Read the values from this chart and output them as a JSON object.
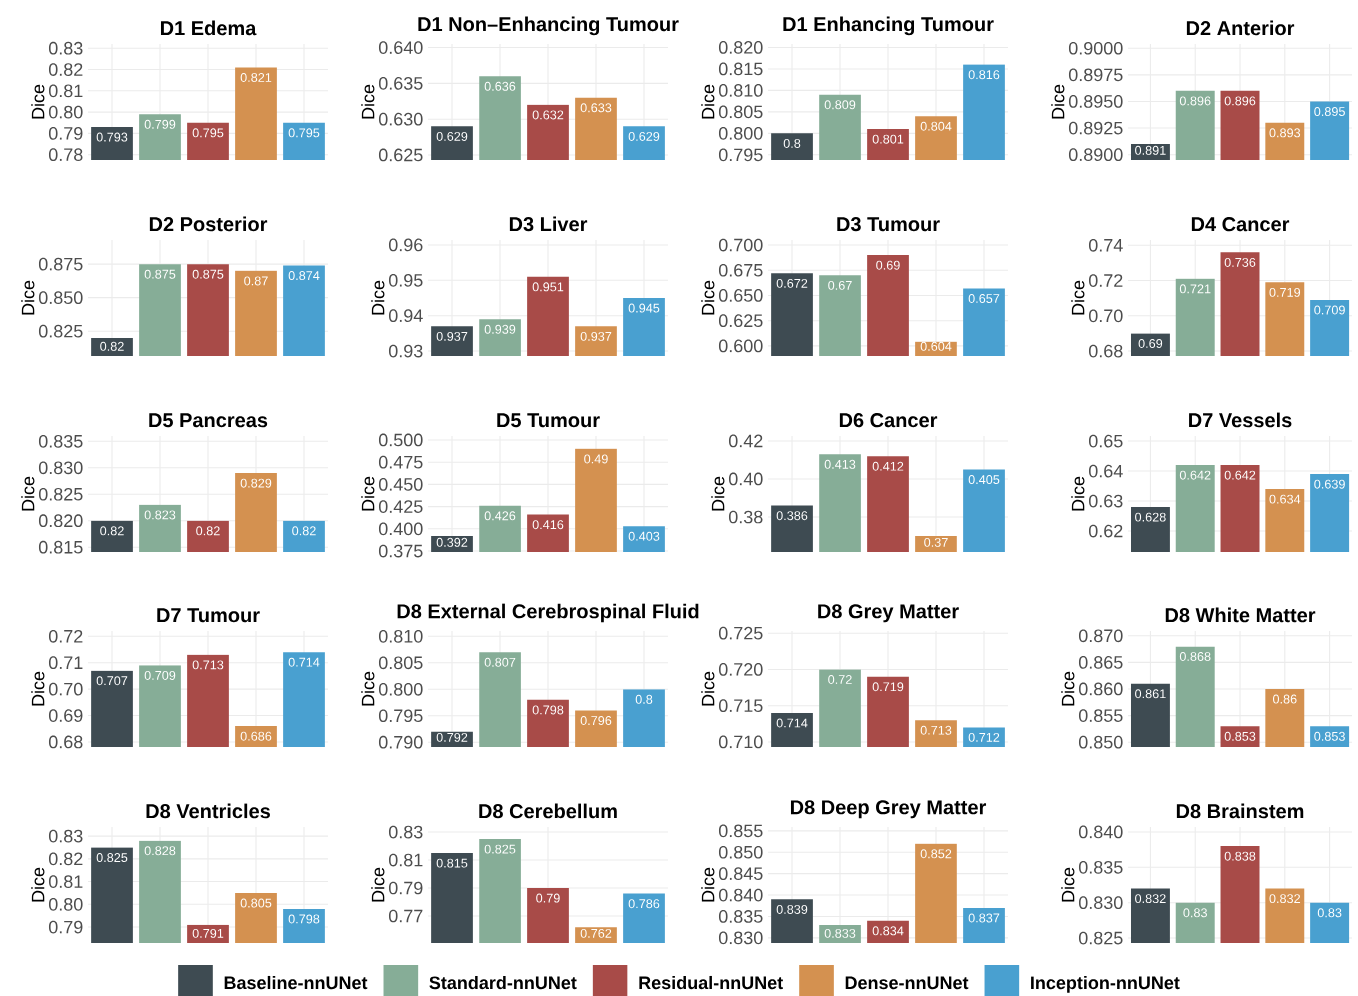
{
  "chart_data": [
    {
      "type": "bar",
      "title": "D1 Edema",
      "ylabel": "Dice",
      "categories": [
        null,
        null,
        null,
        null,
        null
      ],
      "values": [
        0.793,
        0.799,
        0.795,
        0.821,
        0.795
      ],
      "value_labels": [
        "0.793",
        "0.799",
        "0.795",
        "0.821",
        "0.795"
      ],
      "colors": [
        "#3e4b52",
        "#86ad97",
        "#a84b48",
        "#d49150",
        "#49a0d0"
      ],
      "ylim": [
        0.7775,
        0.832
      ],
      "yticks": [
        0.78,
        0.79,
        {
          "value": 0.8,
          "label": "0.80"
        },
        0.81,
        0.82,
        0.83
      ],
      "grid": true,
      "tick_labels": "y"
    },
    {
      "type": "bar",
      "title": "D1 Non–Enhancing Tumour",
      "ylabel": "Dice",
      "categories": [
        null,
        null,
        null,
        null,
        null
      ],
      "values": [
        0.629,
        0.636,
        0.632,
        0.633,
        0.629
      ],
      "value_labels": [
        "0.629",
        "0.636",
        "0.632",
        "0.633",
        "0.629"
      ],
      "colors": [
        "#3e4b52",
        "#86ad97",
        "#a84b48",
        "#d49150",
        "#49a0d0"
      ],
      "ylim": [
        0.6243,
        0.6405
      ],
      "yticks": [
        0.625,
        {
          "value": 0.63,
          "label": "0.630"
        },
        0.635,
        {
          "value": 0.64,
          "label": "0.640"
        }
      ],
      "grid": true,
      "tick_labels": "y"
    },
    {
      "type": "bar",
      "title": "D1 Enhancing Tumour",
      "ylabel": "Dice",
      "categories": [
        null,
        null,
        null,
        null,
        null
      ],
      "values": [
        0.8,
        0.809,
        0.801,
        0.804,
        0.816
      ],
      "value_labels": [
        "0.8",
        "0.809",
        "0.801",
        "0.804",
        "0.816"
      ],
      "colors": [
        "#3e4b52",
        "#86ad97",
        "#a84b48",
        "#d49150",
        "#49a0d0"
      ],
      "ylim": [
        0.7938,
        0.8208
      ],
      "yticks": [
        0.795,
        {
          "value": 0.8,
          "label": "0.800"
        },
        0.805,
        {
          "value": 0.81,
          "label": "0.810"
        },
        0.815,
        {
          "value": 0.82,
          "label": "0.820"
        }
      ],
      "grid": true,
      "tick_labels": "y"
    },
    {
      "type": "bar",
      "title": "D2 Anterior",
      "ylabel": "Dice",
      "categories": [
        null,
        null,
        null,
        null,
        null
      ],
      "values": [
        0.891,
        0.896,
        0.896,
        0.893,
        0.895
      ],
      "value_labels": [
        "0.891",
        "0.896",
        "0.896",
        "0.893",
        "0.895"
      ],
      "colors": [
        "#3e4b52",
        "#86ad97",
        "#a84b48",
        "#d49150",
        "#49a0d0"
      ],
      "ylim": [
        0.8895,
        0.9004
      ],
      "yticks": [
        {
          "value": 0.89,
          "label": "0.8900"
        },
        0.8925,
        {
          "value": 0.895,
          "label": "0.8950"
        },
        0.8975,
        {
          "value": 0.9,
          "label": "0.9000"
        }
      ],
      "grid": true,
      "tick_labels": "y"
    },
    {
      "type": "bar",
      "title": "D2 Posterior",
      "ylabel": "Dice",
      "categories": [
        null,
        null,
        null,
        null,
        null
      ],
      "values": [
        0.82,
        0.875,
        0.875,
        0.87,
        0.874
      ],
      "value_labels": [
        "0.82",
        "0.875",
        "0.875",
        "0.87",
        "0.874"
      ],
      "colors": [
        "#3e4b52",
        "#86ad97",
        "#a84b48",
        "#d49150",
        "#49a0d0"
      ],
      "ylim": [
        0.8065,
        0.893
      ],
      "yticks": [
        0.825,
        {
          "value": 0.85,
          "label": "0.850"
        },
        0.875
      ],
      "grid": true,
      "tick_labels": "y"
    },
    {
      "type": "bar",
      "title": "D3 Liver",
      "ylabel": "Dice",
      "categories": [
        null,
        null,
        null,
        null,
        null
      ],
      "values": [
        0.937,
        0.939,
        0.951,
        0.937,
        0.945
      ],
      "value_labels": [
        "0.937",
        "0.939",
        "0.951",
        "0.937",
        "0.945"
      ],
      "colors": [
        "#3e4b52",
        "#86ad97",
        "#a84b48",
        "#d49150",
        "#49a0d0"
      ],
      "ylim": [
        0.9286,
        0.9614
      ],
      "yticks": [
        0.93,
        0.94,
        0.95,
        0.96
      ],
      "grid": true,
      "tick_labels": "y"
    },
    {
      "type": "bar",
      "title": "D3 Tumour",
      "ylabel": "Dice",
      "categories": [
        null,
        null,
        null,
        null,
        null
      ],
      "values": [
        0.672,
        0.67,
        0.69,
        0.604,
        0.657
      ],
      "value_labels": [
        "0.672",
        "0.67",
        "0.69",
        "0.604",
        "0.657"
      ],
      "colors": [
        "#3e4b52",
        "#86ad97",
        "#a84b48",
        "#d49150",
        "#49a0d0"
      ],
      "ylim": [
        0.59,
        0.705
      ],
      "yticks": [
        {
          "value": 0.6,
          "label": "0.600"
        },
        0.625,
        {
          "value": 0.65,
          "label": "0.650"
        },
        0.675,
        {
          "value": 0.7,
          "label": "0.700"
        }
      ],
      "grid": true,
      "tick_labels": "y"
    },
    {
      "type": "bar",
      "title": "D4 Cancer",
      "ylabel": "Dice",
      "categories": [
        null,
        null,
        null,
        null,
        null
      ],
      "values": [
        0.69,
        0.721,
        0.736,
        0.719,
        0.709
      ],
      "value_labels": [
        "0.69",
        "0.721",
        "0.736",
        "0.719",
        "0.709"
      ],
      "colors": [
        "#3e4b52",
        "#86ad97",
        "#a84b48",
        "#d49150",
        "#49a0d0"
      ],
      "ylim": [
        0.6772,
        0.743
      ],
      "yticks": [
        0.68,
        {
          "value": 0.7,
          "label": "0.70"
        },
        0.72,
        0.74
      ],
      "grid": true,
      "tick_labels": "y"
    },
    {
      "type": "bar",
      "title": "D5 Pancreas",
      "ylabel": "Dice",
      "categories": [
        null,
        null,
        null,
        null,
        null
      ],
      "values": [
        0.82,
        0.823,
        0.82,
        0.829,
        0.82
      ],
      "value_labels": [
        "0.82",
        "0.823",
        "0.82",
        "0.829",
        "0.82"
      ],
      "colors": [
        "#3e4b52",
        "#86ad97",
        "#a84b48",
        "#d49150",
        "#49a0d0"
      ],
      "ylim": [
        0.8141,
        0.836
      ],
      "yticks": [
        0.815,
        {
          "value": 0.82,
          "label": "0.820"
        },
        0.825,
        {
          "value": 0.83,
          "label": "0.830"
        },
        0.835
      ],
      "grid": true,
      "tick_labels": "y"
    },
    {
      "type": "bar",
      "title": "D5 Tumour",
      "ylabel": "Dice",
      "categories": [
        null,
        null,
        null,
        null,
        null
      ],
      "values": [
        0.392,
        0.426,
        0.416,
        0.49,
        0.403
      ],
      "value_labels": [
        "0.392",
        "0.426",
        "0.416",
        "0.49",
        "0.403"
      ],
      "colors": [
        "#3e4b52",
        "#86ad97",
        "#a84b48",
        "#d49150",
        "#49a0d0"
      ],
      "ylim": [
        0.3739,
        0.5045
      ],
      "yticks": [
        0.375,
        {
          "value": 0.4,
          "label": "0.400"
        },
        0.425,
        {
          "value": 0.45,
          "label": "0.450"
        },
        0.475,
        {
          "value": 0.5,
          "label": "0.500"
        }
      ],
      "grid": true,
      "tick_labels": "y"
    },
    {
      "type": "bar",
      "title": "D6 Cancer",
      "ylabel": "Dice",
      "categories": [
        null,
        null,
        null,
        null,
        null
      ],
      "values": [
        0.386,
        0.413,
        0.412,
        0.37,
        0.405
      ],
      "value_labels": [
        "0.386",
        "0.413",
        "0.412",
        "0.37",
        "0.405"
      ],
      "colors": [
        "#3e4b52",
        "#86ad97",
        "#a84b48",
        "#d49150",
        "#49a0d0"
      ],
      "ylim": [
        0.3616,
        0.4226
      ],
      "yticks": [
        0.38,
        {
          "value": 0.4,
          "label": "0.40"
        },
        0.42
      ],
      "grid": true,
      "tick_labels": "y"
    },
    {
      "type": "bar",
      "title": "D7 Vessels",
      "ylabel": "Dice",
      "categories": [
        null,
        null,
        null,
        null,
        null
      ],
      "values": [
        0.628,
        0.642,
        0.642,
        0.634,
        0.639
      ],
      "value_labels": [
        "0.628",
        "0.642",
        "0.642",
        "0.634",
        "0.639"
      ],
      "colors": [
        "#3e4b52",
        "#86ad97",
        "#a84b48",
        "#d49150",
        "#49a0d0"
      ],
      "ylim": [
        0.613,
        0.6517
      ],
      "yticks": [
        0.62,
        0.63,
        0.64,
        0.65
      ],
      "grid": true,
      "tick_labels": "y"
    },
    {
      "type": "bar",
      "title": "D7 Tumour",
      "ylabel": "Dice",
      "categories": [
        null,
        null,
        null,
        null,
        null
      ],
      "values": [
        0.707,
        0.709,
        0.713,
        0.686,
        0.714
      ],
      "value_labels": [
        "0.707",
        "0.709",
        "0.713",
        "0.686",
        "0.714"
      ],
      "colors": [
        "#3e4b52",
        "#86ad97",
        "#a84b48",
        "#d49150",
        "#49a0d0"
      ],
      "ylim": [
        0.6781,
        0.722
      ],
      "yticks": [
        0.68,
        0.69,
        {
          "value": 0.7,
          "label": "0.70"
        },
        0.71,
        0.72
      ],
      "grid": true,
      "tick_labels": "y"
    },
    {
      "type": "bar",
      "title": "D8 External Cerebrospinal Fluid",
      "ylabel": "Dice",
      "categories": [
        null,
        null,
        null,
        null,
        null
      ],
      "values": [
        0.792,
        0.807,
        0.798,
        0.796,
        0.8
      ],
      "value_labels": [
        "0.792",
        "0.807",
        "0.798",
        "0.796",
        "0.8"
      ],
      "colors": [
        "#3e4b52",
        "#86ad97",
        "#a84b48",
        "#d49150",
        "#49a0d0"
      ],
      "ylim": [
        0.7891,
        0.811
      ],
      "yticks": [
        {
          "value": 0.79,
          "label": "0.790"
        },
        0.795,
        {
          "value": 0.8,
          "label": "0.800"
        },
        0.805,
        {
          "value": 0.81,
          "label": "0.810"
        }
      ],
      "grid": true,
      "tick_labels": "y"
    },
    {
      "type": "bar",
      "title": "D8 Grey Matter",
      "ylabel": "Dice",
      "categories": [
        null,
        null,
        null,
        null,
        null
      ],
      "values": [
        0.714,
        0.72,
        0.719,
        0.713,
        0.712
      ],
      "value_labels": [
        "0.714",
        "0.72",
        "0.719",
        "0.713",
        "0.712"
      ],
      "colors": [
        "#3e4b52",
        "#86ad97",
        "#a84b48",
        "#d49150",
        "#49a0d0"
      ],
      "ylim": [
        0.7093,
        0.7253
      ],
      "yticks": [
        {
          "value": 0.71,
          "label": "0.710"
        },
        0.715,
        {
          "value": 0.72,
          "label": "0.720"
        },
        0.725
      ],
      "grid": true,
      "tick_labels": "y"
    },
    {
      "type": "bar",
      "title": "D8 White Matter",
      "ylabel": "Dice",
      "categories": [
        null,
        null,
        null,
        null,
        null
      ],
      "values": [
        0.861,
        0.868,
        0.853,
        0.86,
        0.853
      ],
      "value_labels": [
        "0.861",
        "0.868",
        "0.853",
        "0.86",
        "0.853"
      ],
      "colors": [
        "#3e4b52",
        "#86ad97",
        "#a84b48",
        "#d49150",
        "#49a0d0"
      ],
      "ylim": [
        0.8491,
        0.8709
      ],
      "yticks": [
        {
          "value": 0.85,
          "label": "0.850"
        },
        0.855,
        {
          "value": 0.86,
          "label": "0.860"
        },
        0.865,
        {
          "value": 0.87,
          "label": "0.870"
        }
      ],
      "grid": true,
      "tick_labels": "y"
    },
    {
      "type": "bar",
      "title": "D8 Ventricles",
      "ylabel": "Dice",
      "categories": [
        null,
        null,
        null,
        null,
        null
      ],
      "values": [
        0.825,
        0.828,
        0.791,
        0.805,
        0.798
      ],
      "value_labels": [
        "0.825",
        "0.828",
        "0.791",
        "0.805",
        "0.798"
      ],
      "colors": [
        "#3e4b52",
        "#86ad97",
        "#a84b48",
        "#d49150",
        "#49a0d0"
      ],
      "ylim": [
        0.783,
        0.834
      ],
      "yticks": [
        0.79,
        {
          "value": 0.8,
          "label": "0.80"
        },
        0.81,
        0.82,
        0.83
      ],
      "grid": true,
      "tick_labels": "y"
    },
    {
      "type": "bar",
      "title": "D8 Cerebellum",
      "ylabel": "Dice",
      "categories": [
        null
      ],
      "series": [
        {
          "name": "Baseline-nnUNet",
          "color": "#3e4b52",
          "values": [
            0.815
          ],
          "value_labels": [
            "0.815"
          ]
        },
        {
          "name": "Standard-nnUNet",
          "color": "#86ad97",
          "values": [
            0.825
          ],
          "value_labels": [
            "0.825"
          ]
        },
        {
          "name": "Residual-nnUNet",
          "color": "#a84b48",
          "values": [
            0.79
          ],
          "value_labels": [
            "0.79"
          ]
        },
        {
          "name": "Dense-nnUNet",
          "color": "#d49150",
          "values": [
            0.762
          ],
          "value_labels": [
            "0.762"
          ]
        },
        {
          "name": "Inception-nnUNet",
          "color": "#49a0d0",
          "values": [
            0.786
          ],
          "value_labels": [
            "0.786"
          ]
        }
      ],
      "ylim": [
        0.7507,
        0.8336
      ],
      "yticks": [
        0.77,
        0.79,
        0.81,
        0.83
      ],
      "grid": true,
      "tick_labels": "y",
      "legend": "bottom"
    },
    {
      "type": "bar",
      "title": "D8 Deep Grey Matter",
      "ylabel": "Dice",
      "categories": [
        null,
        null,
        null,
        null,
        null
      ],
      "values": [
        0.839,
        0.833,
        0.834,
        0.852,
        0.837
      ],
      "value_labels": [
        "0.839",
        "0.833",
        "0.834",
        "0.852",
        "0.837"
      ],
      "colors": [
        "#3e4b52",
        "#86ad97",
        "#a84b48",
        "#d49150",
        "#49a0d0"
      ],
      "ylim": [
        0.8288,
        0.8559
      ],
      "yticks": [
        {
          "value": 0.83,
          "label": "0.830"
        },
        0.835,
        {
          "value": 0.84,
          "label": "0.840"
        },
        0.845,
        {
          "value": 0.85,
          "label": "0.850"
        },
        0.855
      ],
      "grid": true,
      "tick_labels": "y"
    },
    {
      "type": "bar",
      "title": "D8 Brainstem",
      "ylabel": "Dice",
      "categories": [
        null,
        null,
        null,
        null,
        null
      ],
      "values": [
        0.832,
        0.83,
        0.838,
        0.832,
        0.83
      ],
      "value_labels": [
        "0.832",
        "0.83",
        "0.838",
        "0.832",
        "0.83"
      ],
      "colors": [
        "#3e4b52",
        "#86ad97",
        "#a84b48",
        "#d49150",
        "#49a0d0"
      ],
      "ylim": [
        0.8243,
        0.8407
      ],
      "yticks": [
        0.825,
        {
          "value": 0.83,
          "label": "0.830"
        },
        0.835,
        {
          "value": 0.84,
          "label": "0.840"
        }
      ],
      "grid": true,
      "tick_labels": "y"
    }
  ]
}
